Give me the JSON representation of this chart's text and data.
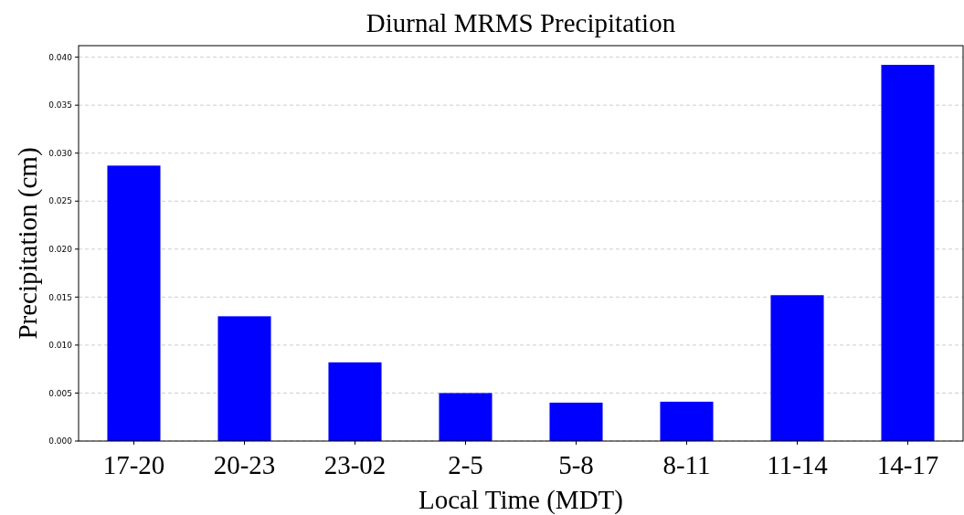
{
  "chart_data": {
    "type": "bar",
    "title": "Diurnal MRMS Precipitation",
    "xlabel": "Local Time (MDT)",
    "ylabel": "Precipitation (cm)",
    "categories": [
      "17-20",
      "20-23",
      "23-02",
      "2-5",
      "5-8",
      "8-11",
      "11-14",
      "14-17"
    ],
    "values": [
      0.0287,
      0.013,
      0.0082,
      0.005,
      0.004,
      0.0041,
      0.0152,
      0.0392
    ],
    "color": "#0000ff",
    "ylim": [
      0,
      0.0412
    ],
    "yticks": [
      {
        "value": 0,
        "label": "0.000"
      },
      {
        "value": 0.005,
        "label": "0.005"
      },
      {
        "value": 0.01,
        "label": "0.010"
      },
      {
        "value": 0.015,
        "label": "0.015"
      },
      {
        "value": 0.02,
        "label": "0.020"
      },
      {
        "value": 0.025,
        "label": "0.025"
      },
      {
        "value": 0.03,
        "label": "0.030"
      },
      {
        "value": 0.035,
        "label": "0.035"
      },
      {
        "value": 0.04,
        "label": "0.040"
      }
    ],
    "grid": "y"
  }
}
